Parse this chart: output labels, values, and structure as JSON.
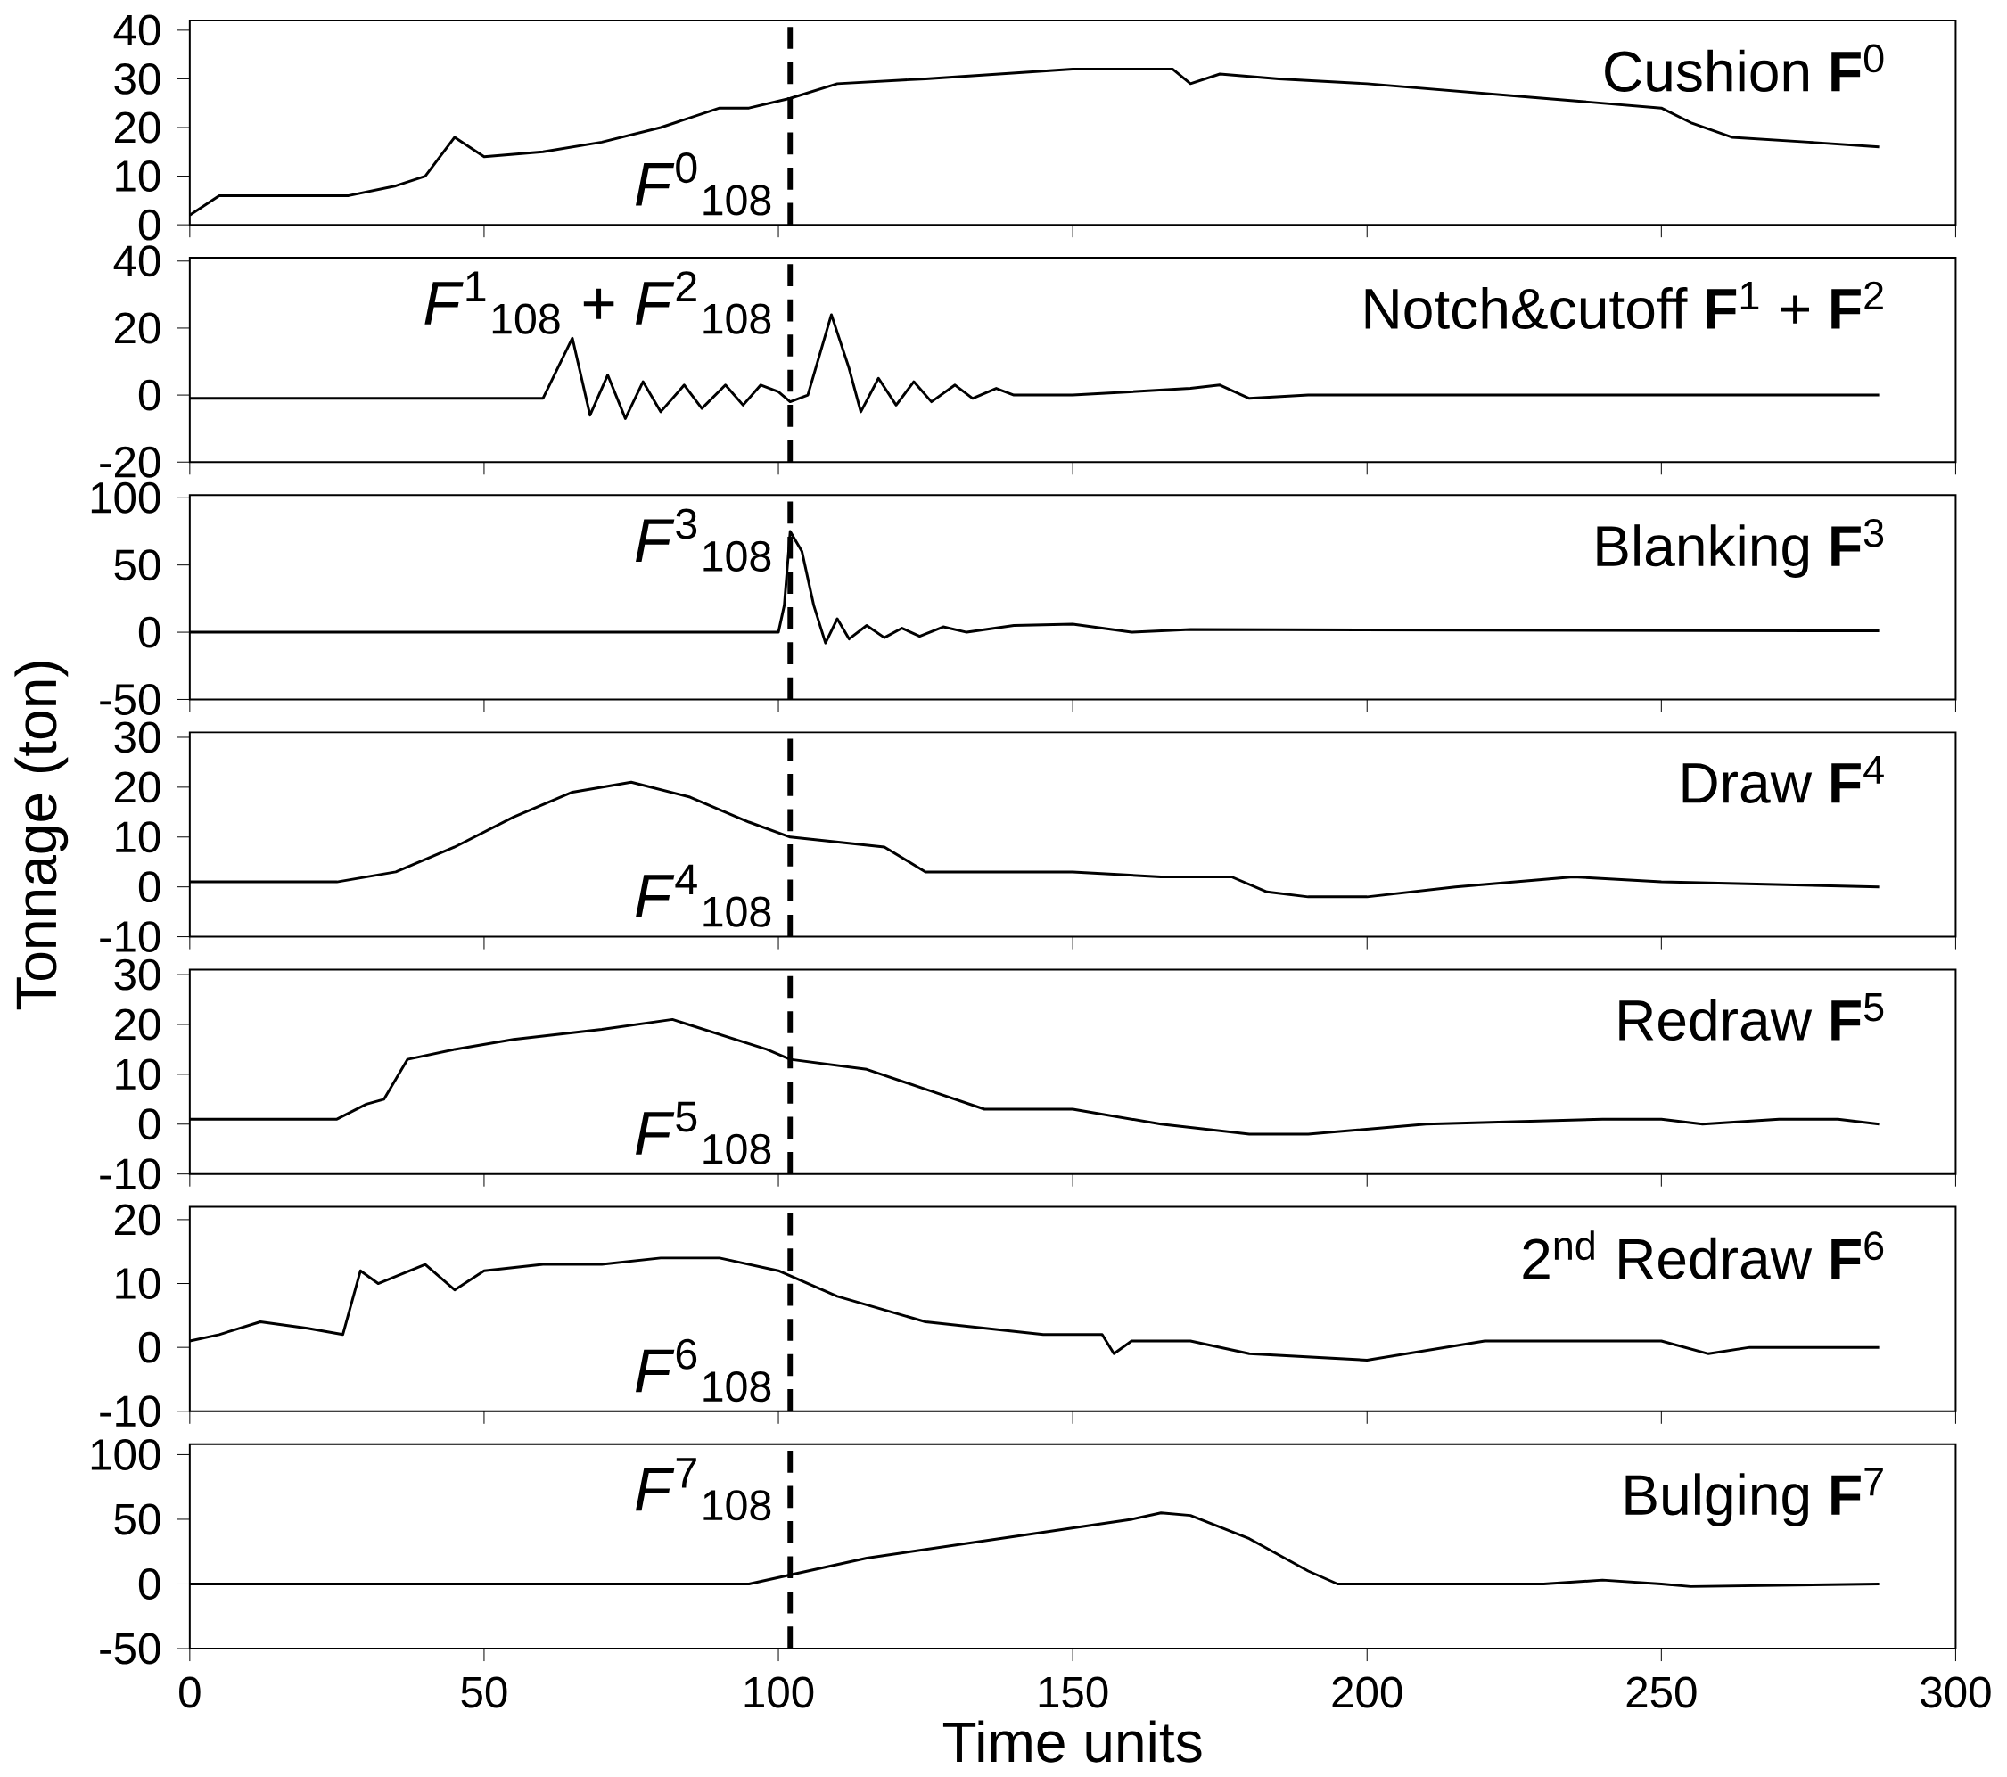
{
  "chart_data": [
    {
      "type": "line",
      "title": "Cushion **F**$^{0}$",
      "color": "#000000",
      "xlim": [
        0,
        300
      ],
      "xticks": [
        {
          "value": 0,
          "label": null
        },
        {
          "value": 50,
          "label": null
        },
        {
          "value": 100,
          "label": null
        },
        {
          "value": 150,
          "label": null
        },
        {
          "value": 200,
          "label": null
        },
        {
          "value": 250,
          "label": null
        },
        {
          "value": 300,
          "label": null
        }
      ],
      "ylim": [
        0,
        42
      ],
      "yticks": [
        0,
        10,
        20,
        30,
        40
      ],
      "tick_labels": "y",
      "ref_lines": [
        {
          "axis": "x",
          "value": 102,
          "label": "*F*$^{0}$$_{108}$",
          "line_style": "dashed"
        }
      ],
      "x": [
        0,
        5,
        27,
        35,
        40,
        45,
        50,
        60,
        70,
        80,
        90,
        95,
        102,
        110,
        125,
        150,
        167,
        170,
        175,
        185,
        200,
        230,
        250,
        255,
        262,
        275,
        287
      ],
      "values": [
        2,
        6,
        6,
        8,
        10,
        18,
        14,
        15,
        17,
        20,
        24,
        24,
        26,
        29,
        30,
        32,
        32,
        29,
        31,
        30,
        29,
        26,
        24,
        21,
        18,
        17,
        16
      ]
    },
    {
      "type": "line",
      "title": "Notch&cutoff **F**$^{1}$ + **F**$^{2}$",
      "color": "#000000",
      "xlim": [
        0,
        300
      ],
      "xticks": [
        {
          "value": 0,
          "label": null
        },
        {
          "value": 50,
          "label": null
        },
        {
          "value": 100,
          "label": null
        },
        {
          "value": 150,
          "label": null
        },
        {
          "value": 200,
          "label": null
        },
        {
          "value": 250,
          "label": null
        },
        {
          "value": 300,
          "label": null
        }
      ],
      "ylim": [
        -20,
        41
      ],
      "yticks": [
        -20,
        0,
        20,
        40
      ],
      "tick_labels": "y",
      "ref_lines": [
        {
          "axis": "x",
          "value": 102,
          "label": "*F*$^{1}$$_{108}$ + *F*$^{2}$$_{108}$",
          "line_style": "dashed"
        }
      ],
      "x": [
        0,
        60,
        65,
        68,
        71,
        74,
        77,
        80,
        84,
        87,
        91,
        94,
        97,
        100,
        102,
        105,
        109,
        112,
        114,
        117,
        120,
        123,
        126,
        130,
        133,
        137,
        140,
        150,
        170,
        175,
        180,
        190,
        250,
        287
      ],
      "values": [
        -1,
        -1,
        17,
        -6,
        6,
        -7,
        4,
        -5,
        3,
        -4,
        3,
        -3,
        3,
        1,
        -2,
        0,
        24,
        8,
        -5,
        5,
        -3,
        4,
        -2,
        3,
        -1,
        2,
        0,
        0,
        2,
        3,
        -1,
        0,
        0,
        0
      ]
    },
    {
      "type": "line",
      "title": "Blanking **F**$^{3}$",
      "color": "#000000",
      "xlim": [
        0,
        300
      ],
      "xticks": [
        {
          "value": 0,
          "label": null
        },
        {
          "value": 50,
          "label": null
        },
        {
          "value": 100,
          "label": null
        },
        {
          "value": 150,
          "label": null
        },
        {
          "value": 200,
          "label": null
        },
        {
          "value": 250,
          "label": null
        },
        {
          "value": 300,
          "label": null
        }
      ],
      "ylim": [
        -50,
        102
      ],
      "yticks": [
        -50,
        0,
        50,
        100
      ],
      "tick_labels": "y",
      "ref_lines": [
        {
          "axis": "x",
          "value": 102,
          "label": "*F*$^{3}$$_{108}$",
          "line_style": "dashed"
        }
      ],
      "x": [
        0,
        100,
        101,
        102,
        104,
        106,
        108,
        110,
        112,
        115,
        118,
        121,
        124,
        128,
        132,
        140,
        150,
        160,
        170,
        287
      ],
      "values": [
        0,
        0,
        20,
        75,
        60,
        20,
        -8,
        10,
        -5,
        5,
        -4,
        3,
        -3,
        4,
        0,
        5,
        6,
        0,
        2,
        1
      ]
    },
    {
      "type": "line",
      "title": "Draw **F**$^{4}$",
      "ylabel": "Tonnage (ton)",
      "color": "#000000",
      "xlim": [
        0,
        300
      ],
      "xticks": [
        {
          "value": 0,
          "label": null
        },
        {
          "value": 50,
          "label": null
        },
        {
          "value": 100,
          "label": null
        },
        {
          "value": 150,
          "label": null
        },
        {
          "value": 200,
          "label": null
        },
        {
          "value": 250,
          "label": null
        },
        {
          "value": 300,
          "label": null
        }
      ],
      "ylim": [
        -10,
        31
      ],
      "yticks": [
        -10,
        0,
        10,
        20,
        30
      ],
      "tick_labels": "y",
      "ref_lines": [
        {
          "axis": "x",
          "value": 102,
          "label": "*F*$^{4}$$_{108}$",
          "line_style": "dashed"
        }
      ],
      "x": [
        0,
        25,
        35,
        45,
        55,
        65,
        75,
        85,
        95,
        102,
        110,
        118,
        125,
        150,
        165,
        177,
        183,
        190,
        200,
        215,
        235,
        250,
        287
      ],
      "values": [
        1,
        1,
        3,
        8,
        14,
        19,
        21,
        18,
        13,
        10,
        9,
        8,
        3,
        3,
        2,
        2,
        -1,
        -2,
        -2,
        0,
        2,
        1,
        0
      ]
    },
    {
      "type": "line",
      "title": "Redraw **F**$^{5}$",
      "color": "#000000",
      "xlim": [
        0,
        300
      ],
      "xticks": [
        {
          "value": 0,
          "label": null
        },
        {
          "value": 50,
          "label": null
        },
        {
          "value": 100,
          "label": null
        },
        {
          "value": 150,
          "label": null
        },
        {
          "value": 200,
          "label": null
        },
        {
          "value": 250,
          "label": null
        },
        {
          "value": 300,
          "label": null
        }
      ],
      "ylim": [
        -10,
        31
      ],
      "yticks": [
        -10,
        0,
        10,
        20,
        30
      ],
      "tick_labels": "y",
      "ref_lines": [
        {
          "axis": "x",
          "value": 102,
          "label": "*F*$^{5}$$_{108}$",
          "line_style": "dashed"
        }
      ],
      "x": [
        0,
        25,
        30,
        33,
        37,
        45,
        55,
        70,
        82,
        90,
        98,
        102,
        115,
        125,
        135,
        150,
        165,
        180,
        190,
        210,
        240,
        250,
        257,
        270,
        280,
        287
      ],
      "values": [
        1,
        1,
        4,
        5,
        13,
        15,
        17,
        19,
        21,
        18,
        15,
        13,
        11,
        7,
        3,
        3,
        0,
        -2,
        -2,
        0,
        1,
        1,
        0,
        1,
        1,
        0
      ]
    },
    {
      "type": "line",
      "title": "2$^{nd}$ Redraw **F**$^{6}$",
      "color": "#000000",
      "xlim": [
        0,
        300
      ],
      "xticks": [
        {
          "value": 0,
          "label": null
        },
        {
          "value": 50,
          "label": null
        },
        {
          "value": 100,
          "label": null
        },
        {
          "value": 150,
          "label": null
        },
        {
          "value": 200,
          "label": null
        },
        {
          "value": 250,
          "label": null
        },
        {
          "value": 300,
          "label": null
        }
      ],
      "ylim": [
        -10,
        22
      ],
      "yticks": [
        -10,
        0,
        10,
        20
      ],
      "tick_labels": "y",
      "ref_lines": [
        {
          "axis": "x",
          "value": 102,
          "label": "*F*$^{6}$$_{108}$",
          "line_style": "dashed"
        }
      ],
      "x": [
        0,
        5,
        12,
        20,
        26,
        29,
        32,
        40,
        45,
        50,
        60,
        70,
        80,
        90,
        100,
        110,
        125,
        145,
        155,
        157,
        160,
        170,
        180,
        200,
        220,
        250,
        258,
        265,
        287
      ],
      "values": [
        1,
        2,
        4,
        3,
        2,
        12,
        10,
        13,
        9,
        12,
        13,
        13,
        14,
        14,
        12,
        8,
        4,
        2,
        2,
        -1,
        1,
        1,
        -1,
        -2,
        1,
        1,
        -1,
        0,
        0
      ]
    },
    {
      "type": "line",
      "title": "Bulging **F**$^{7}$",
      "xlabel": "Time units",
      "color": "#000000",
      "xlim": [
        0,
        300
      ],
      "xticks": [
        0,
        50,
        100,
        150,
        200,
        250,
        300
      ],
      "ylim": [
        -50,
        108
      ],
      "yticks": [
        -50,
        0,
        50,
        100
      ],
      "ref_lines": [
        {
          "axis": "x",
          "value": 102,
          "label": "*F*$^{7}$$_{108}$",
          "line_style": "dashed"
        }
      ],
      "x": [
        0,
        95,
        100,
        105,
        115,
        130,
        145,
        160,
        165,
        170,
        180,
        190,
        195,
        230,
        240,
        250,
        255,
        287
      ],
      "values": [
        0,
        0,
        5,
        10,
        20,
        30,
        40,
        50,
        55,
        53,
        35,
        10,
        0,
        0,
        3,
        0,
        -2,
        0
      ]
    }
  ]
}
